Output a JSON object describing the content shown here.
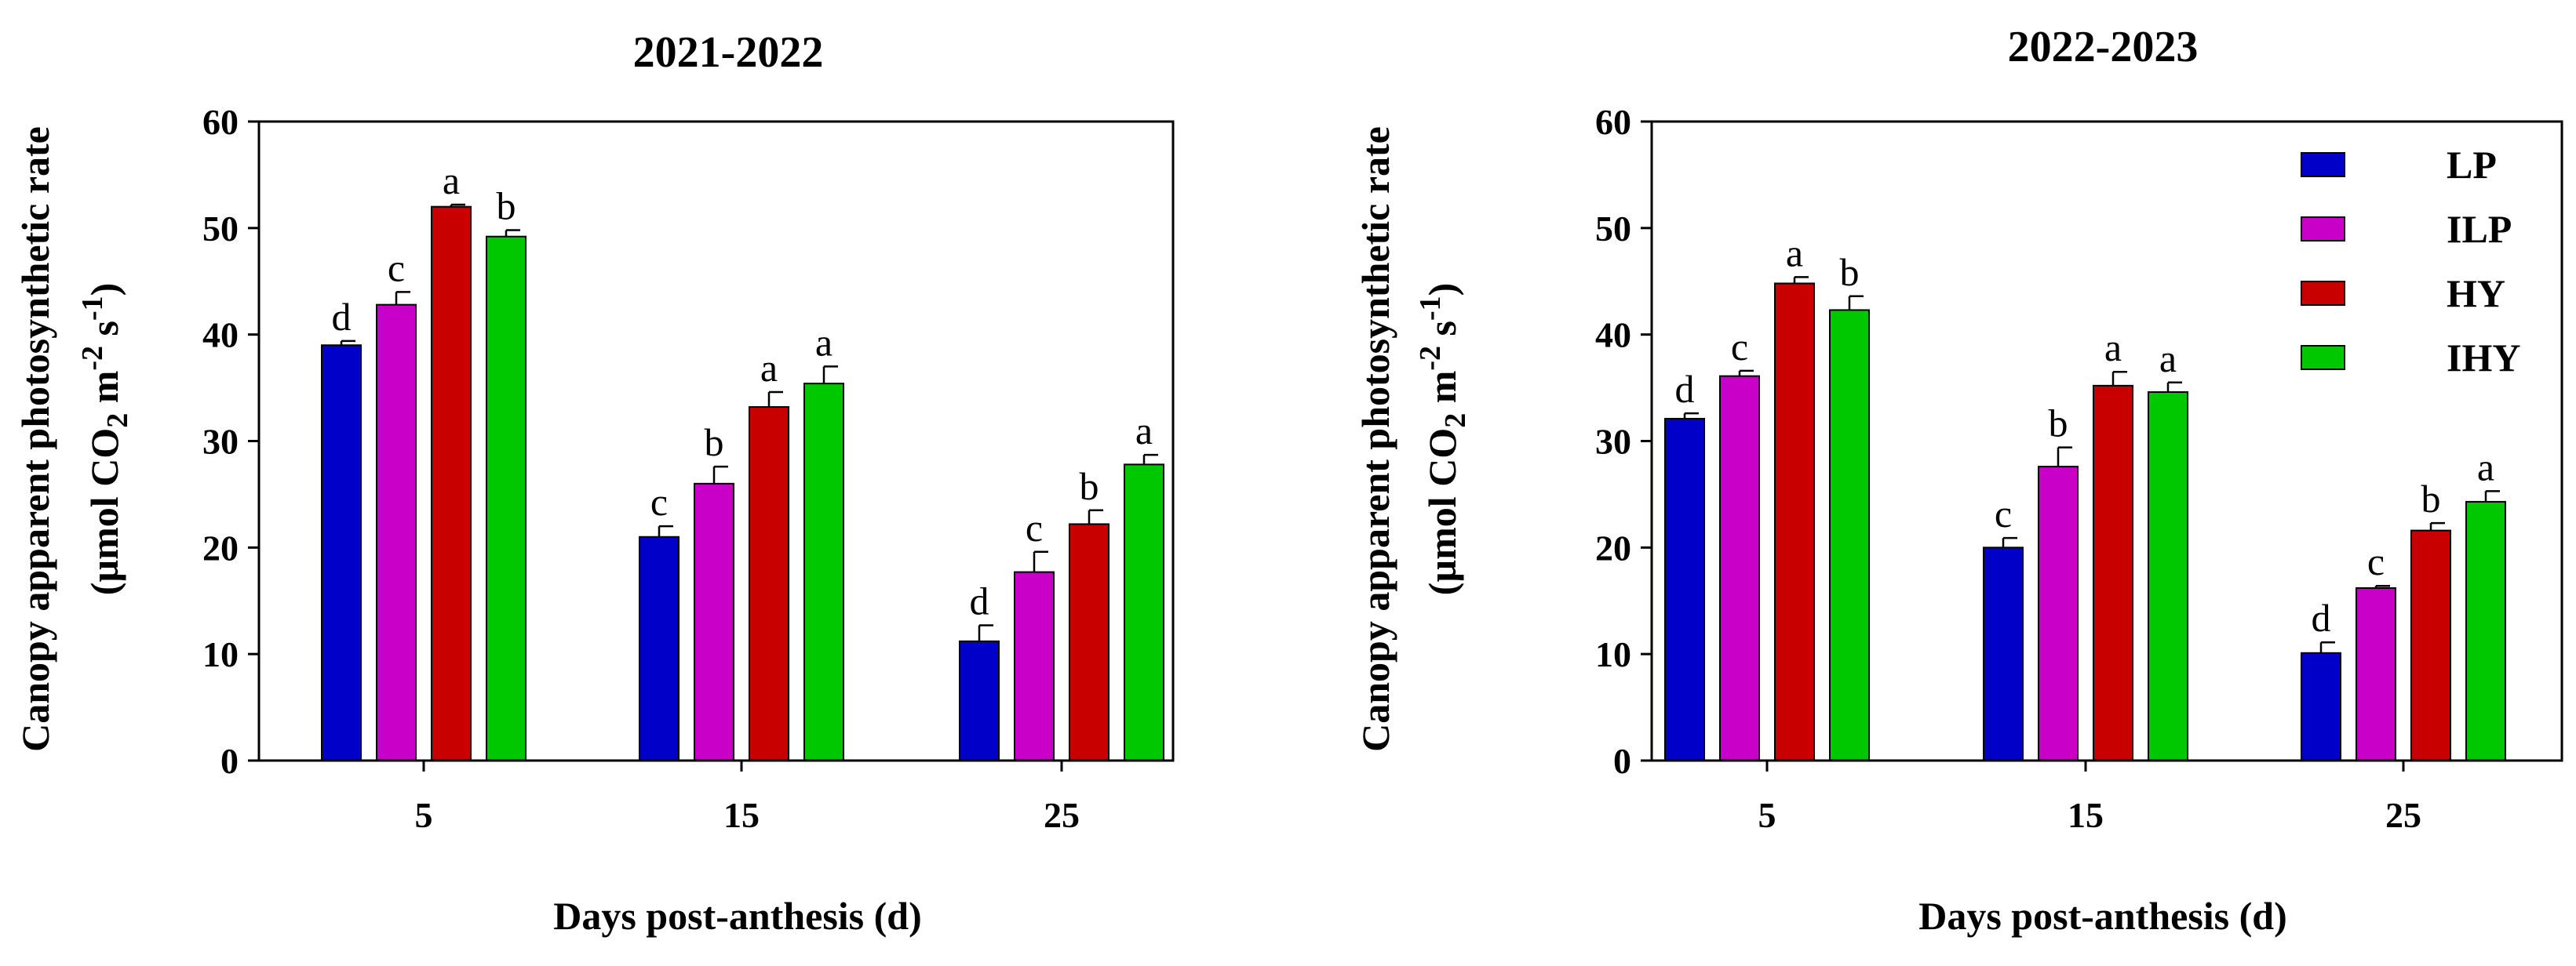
{
  "chart_data": [
    {
      "type": "bar",
      "title": "2021-2022",
      "xlabel": "Days post-anthesis (d)",
      "ylabel_line1": "Canopy apparent photosynthetic rate",
      "ylabel_line2": {
        "a": "(µmol CO",
        "sub": "2",
        "b": " m",
        "sup1": "-2",
        "c": " s",
        "sup2": "-1",
        "d": ")"
      },
      "ylim": [
        0,
        60
      ],
      "yticks": [
        0,
        10,
        20,
        30,
        40,
        50,
        60
      ],
      "categories": [
        "5",
        "15",
        "25"
      ],
      "series": [
        {
          "name": "LP",
          "color": "#0000c8",
          "values": [
            39.0,
            21.0,
            11.2
          ],
          "errors": [
            0.4,
            1.0,
            1.5
          ],
          "letters": [
            "d",
            "c",
            "d"
          ]
        },
        {
          "name": "ILP",
          "color": "#c800c8",
          "values": [
            42.8,
            26.0,
            17.7
          ],
          "errors": [
            1.2,
            1.6,
            1.9
          ],
          "letters": [
            "c",
            "b",
            "c"
          ]
        },
        {
          "name": "HY",
          "color": "#c80000",
          "values": [
            52.0,
            33.2,
            22.2
          ],
          "errors": [
            0.2,
            1.4,
            1.3
          ],
          "letters": [
            "a",
            "a",
            "b"
          ]
        },
        {
          "name": "IHY",
          "color": "#00c800",
          "values": [
            49.2,
            35.4,
            27.8
          ],
          "errors": [
            0.6,
            1.6,
            0.9
          ],
          "letters": [
            "b",
            "a",
            "a"
          ]
        }
      ],
      "legend": false
    },
    {
      "type": "bar",
      "title": "2022-2023",
      "xlabel": "Days post-anthesis (d)",
      "ylabel_line1": "Canopy apparent photosynthetic rate",
      "ylabel_line2": {
        "a": "(µmol CO",
        "sub": "2",
        "b": " m",
        "sup1": "-2",
        "c": " s",
        "sup2": "-1",
        "d": ")"
      },
      "ylim": [
        0,
        60
      ],
      "yticks": [
        0,
        10,
        20,
        30,
        40,
        50,
        60
      ],
      "categories": [
        "5",
        "15",
        "25"
      ],
      "series": [
        {
          "name": "LP",
          "color": "#0000c8",
          "values": [
            32.1,
            20.0,
            10.1
          ],
          "errors": [
            0.5,
            0.9,
            1.0
          ],
          "letters": [
            "d",
            "c",
            "d"
          ]
        },
        {
          "name": "ILP",
          "color": "#c800c8",
          "values": [
            36.1,
            27.6,
            16.2
          ],
          "errors": [
            0.5,
            1.8,
            0.2
          ],
          "letters": [
            "c",
            "b",
            "c"
          ]
        },
        {
          "name": "HY",
          "color": "#c80000",
          "values": [
            44.8,
            35.2,
            21.6
          ],
          "errors": [
            0.6,
            1.3,
            0.7
          ],
          "letters": [
            "a",
            "a",
            "b"
          ]
        },
        {
          "name": "IHY",
          "color": "#00c800",
          "values": [
            42.3,
            34.6,
            24.3
          ],
          "errors": [
            1.3,
            0.9,
            1.0
          ],
          "letters": [
            "b",
            "a",
            "a"
          ]
        }
      ],
      "legend": true,
      "legend_position": "top-right"
    }
  ]
}
